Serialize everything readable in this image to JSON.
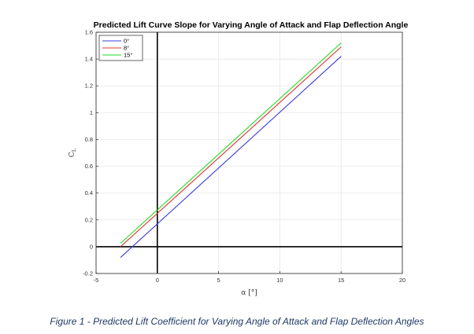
{
  "chart_data": {
    "type": "line",
    "title": "Predicted Lift Curve Slope for Varying Angle of Attack and Flap Deflection Angle",
    "xlabel": "α [°]",
    "ylabel": "C",
    "ylabel_subscript": "L",
    "xlim": [
      -5,
      20
    ],
    "ylim": [
      -0.2,
      1.6
    ],
    "xticks": [
      -5,
      0,
      5,
      10,
      15,
      20
    ],
    "yticks": [
      -0.2,
      0,
      0.2,
      0.4,
      0.6,
      0.8,
      1,
      1.2,
      1.4,
      1.6
    ],
    "ytick_labels": [
      "-0.2",
      "0",
      "0.2",
      "0.4",
      "0.6",
      "0.8",
      "1",
      "1.2",
      "1.4",
      "1.6"
    ],
    "grid": true,
    "legend_position": "top-left",
    "series": [
      {
        "name": "0°",
        "color": "#3b3bde",
        "x": [
          -3,
          15
        ],
        "y": [
          -0.08,
          1.42
        ]
      },
      {
        "name": "8°",
        "color": "#e03030",
        "x": [
          -3,
          15
        ],
        "y": [
          0.0,
          1.49
        ]
      },
      {
        "name": "15°",
        "color": "#22dd22",
        "x": [
          -3,
          15
        ],
        "y": [
          0.025,
          1.52
        ]
      }
    ]
  },
  "caption": "Figure 1 - Predicted Lift Coefficient for Varying Angle of Attack and Flap Deflection Angles"
}
